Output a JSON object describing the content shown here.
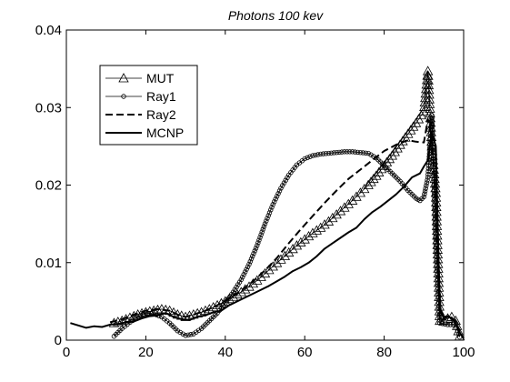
{
  "chart_data": {
    "type": "line",
    "title": "Photons 100 kev",
    "xlabel": "",
    "ylabel": "",
    "xlim": [
      0,
      100
    ],
    "ylim": [
      0,
      0.04
    ],
    "x_ticks": [
      0,
      20,
      40,
      60,
      80,
      100
    ],
    "x_tick_labels": [
      "0",
      "20",
      "40",
      "60",
      "80",
      "100"
    ],
    "y_ticks": [
      0,
      0.01,
      0.02,
      0.03,
      0.04
    ],
    "y_tick_labels": [
      "0",
      "0.01",
      "0.02",
      "0.03",
      "0.04"
    ],
    "grid": false,
    "legend_position": "top-left",
    "series": [
      {
        "name": "MUT",
        "style": "solid-thin",
        "marker": "triangle",
        "x": [
          12,
          14,
          16,
          18,
          20,
          22,
          24,
          26,
          28,
          30,
          32,
          34,
          36,
          38,
          40,
          42,
          44,
          46,
          48,
          50,
          52,
          54,
          56,
          58,
          60,
          62,
          64,
          66,
          68,
          70,
          72,
          74,
          76,
          78,
          80,
          82,
          84,
          86,
          88,
          90,
          91,
          92,
          93,
          94,
          95,
          96,
          97,
          98,
          99
        ],
        "y": [
          0.0022,
          0.0025,
          0.0029,
          0.0033,
          0.0036,
          0.0038,
          0.004,
          0.0038,
          0.0033,
          0.003,
          0.0033,
          0.0036,
          0.004,
          0.0045,
          0.005,
          0.0056,
          0.0062,
          0.0069,
          0.0077,
          0.0086,
          0.0095,
          0.0104,
          0.0113,
          0.0122,
          0.013,
          0.0138,
          0.0145,
          0.0153,
          0.0162,
          0.0171,
          0.018,
          0.019,
          0.02,
          0.0212,
          0.0225,
          0.0238,
          0.0252,
          0.0266,
          0.028,
          0.0295,
          0.0347,
          0.025,
          0.019,
          0.0025,
          0.0025,
          0.0028,
          0.003,
          0.0025,
          0.0005
        ]
      },
      {
        "name": "Ray1",
        "style": "solid-thin",
        "marker": "circle",
        "x": [
          12,
          14,
          16,
          18,
          20,
          22,
          24,
          26,
          28,
          30,
          32,
          34,
          36,
          38,
          40,
          42,
          44,
          46,
          48,
          50,
          52,
          54,
          56,
          58,
          60,
          62,
          64,
          66,
          68,
          70,
          72,
          74,
          76,
          78,
          80,
          82,
          84,
          86,
          88,
          89,
          90,
          91,
          92,
          93,
          94,
          96,
          98,
          99
        ],
        "y": [
          0.0005,
          0.0015,
          0.0023,
          0.003,
          0.0035,
          0.0034,
          0.003,
          0.0022,
          0.0012,
          0.0006,
          0.0008,
          0.0015,
          0.0025,
          0.0035,
          0.0048,
          0.0062,
          0.0078,
          0.0098,
          0.0122,
          0.015,
          0.0175,
          0.0196,
          0.0213,
          0.0226,
          0.0234,
          0.0238,
          0.024,
          0.0241,
          0.0242,
          0.0243,
          0.0243,
          0.0242,
          0.0241,
          0.0235,
          0.0225,
          0.0215,
          0.0205,
          0.0193,
          0.0183,
          0.018,
          0.0185,
          0.021,
          0.029,
          0.013,
          0.0022,
          0.002,
          0.002,
          0.0004
        ]
      },
      {
        "name": "Ray2",
        "style": "dashed",
        "marker": "none",
        "x": [
          11,
          14,
          17,
          20,
          23,
          26,
          28,
          30,
          32,
          35,
          38,
          41,
          44,
          47,
          50,
          53,
          56,
          59,
          62,
          65,
          68,
          71,
          74,
          77,
          80,
          83,
          86,
          88,
          90,
          91,
          92,
          93,
          94,
          96,
          98,
          99,
          100
        ],
        "y": [
          0.0023,
          0.0027,
          0.0033,
          0.0038,
          0.004,
          0.0038,
          0.0033,
          0.003,
          0.0033,
          0.0038,
          0.0045,
          0.0054,
          0.0064,
          0.0076,
          0.009,
          0.0106,
          0.0125,
          0.0143,
          0.016,
          0.0177,
          0.0193,
          0.0208,
          0.022,
          0.0232,
          0.0244,
          0.0252,
          0.0258,
          0.0256,
          0.0255,
          0.0285,
          0.026,
          0.018,
          0.0025,
          0.003,
          0.0025,
          0.001,
          0.0002
        ]
      },
      {
        "name": "MCNP",
        "style": "solid-thick",
        "marker": "none",
        "x": [
          1,
          3,
          5,
          7,
          9,
          11,
          13,
          15,
          17,
          19,
          21,
          23,
          25,
          27,
          29,
          31,
          33,
          35,
          37,
          39,
          41,
          43,
          45,
          47,
          49,
          51,
          53,
          55,
          57,
          59,
          61,
          63,
          65,
          67,
          69,
          71,
          73,
          75,
          77,
          79,
          81,
          83,
          85,
          87,
          89,
          90,
          91,
          92,
          93,
          94,
          95,
          96,
          97,
          98,
          99,
          100
        ],
        "y": [
          0.0022,
          0.0019,
          0.0016,
          0.0018,
          0.0017,
          0.002,
          0.0021,
          0.0023,
          0.0024,
          0.0028,
          0.0031,
          0.0032,
          0.0035,
          0.003,
          0.0027,
          0.0026,
          0.003,
          0.0032,
          0.0036,
          0.0038,
          0.0045,
          0.005,
          0.0055,
          0.006,
          0.0065,
          0.007,
          0.0076,
          0.0082,
          0.0089,
          0.0094,
          0.01,
          0.0108,
          0.0118,
          0.0125,
          0.0132,
          0.0139,
          0.0145,
          0.0156,
          0.0165,
          0.0172,
          0.018,
          0.0188,
          0.0198,
          0.021,
          0.0215,
          0.0224,
          0.0232,
          0.0268,
          0.025,
          0.004,
          0.003,
          0.0031,
          0.0028,
          0.0022,
          0.001,
          0.0002
        ]
      }
    ]
  }
}
